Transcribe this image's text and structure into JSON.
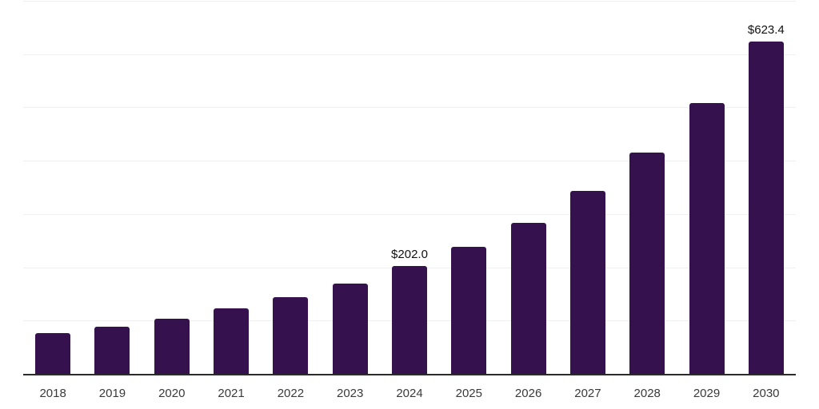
{
  "chart_data": {
    "type": "bar",
    "title": "",
    "xlabel": "",
    "ylabel": "",
    "categories": [
      "2018",
      "2019",
      "2020",
      "2021",
      "2022",
      "2023",
      "2024",
      "2025",
      "2026",
      "2027",
      "2028",
      "2029",
      "2030"
    ],
    "values": [
      77,
      89,
      104,
      123,
      144,
      169,
      202.0,
      238,
      284,
      343,
      415,
      508,
      623.4
    ],
    "value_labels": [
      "",
      "",
      "",
      "",
      "",
      "",
      "$202.0",
      "",
      "",
      "",
      "",
      "",
      "$623.4"
    ],
    "ylim": [
      0,
      700
    ],
    "gridline_step": 100,
    "grid": "horizontal",
    "y_axis_tick_labels_visible": false,
    "legend_position": "none"
  },
  "colors": {
    "bar": "#35124d",
    "axis_line": "#2b2b2b",
    "gridline": "#f0f0f2",
    "tick_label": "#3a3a3a",
    "value_label": "#111111",
    "background": "#ffffff"
  }
}
